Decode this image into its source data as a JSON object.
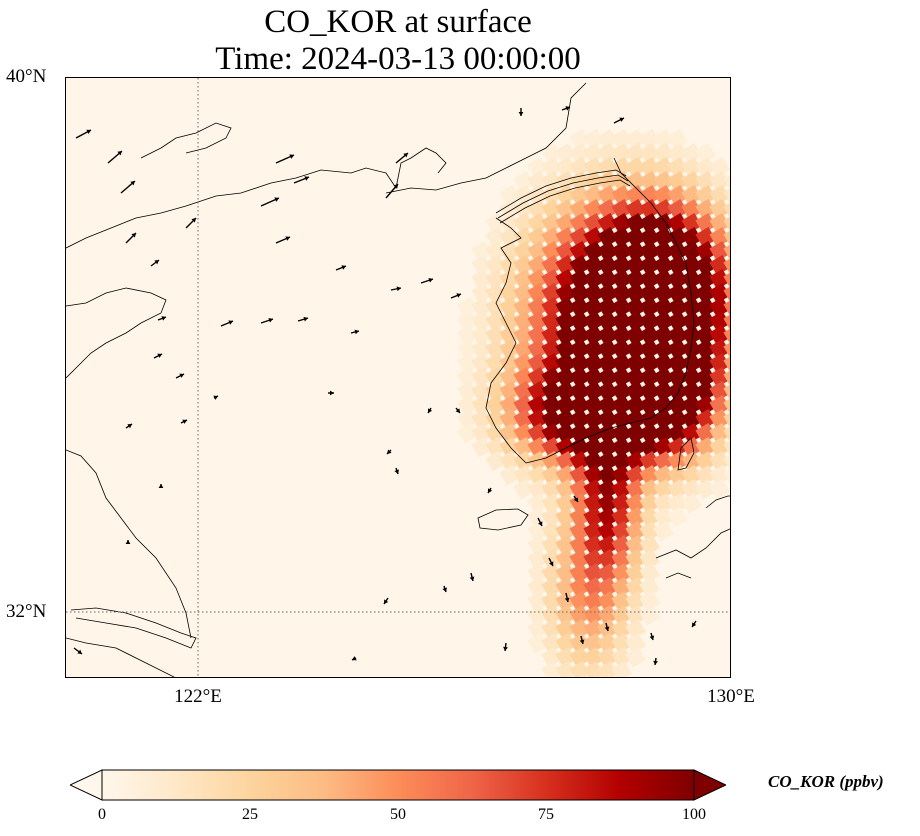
{
  "title": {
    "line1": "CO_KOR at surface",
    "line2": "Time: 2024-03-13 00:00:00"
  },
  "map": {
    "lat_labels": [
      "40°N",
      "32°N"
    ],
    "lon_labels": [
      "122°E",
      "130°E"
    ],
    "extent_lon": [
      120,
      130
    ],
    "extent_lat": [
      31,
      40
    ],
    "gridlines": "dotted",
    "features": [
      "coastlines",
      "wind-vectors",
      "concentration-field"
    ]
  },
  "colorbar": {
    "label": "CO_KOR (ppbv)",
    "ticks": [
      "0",
      "25",
      "50",
      "75",
      "100"
    ],
    "range": [
      0,
      100
    ],
    "extend": "both",
    "colormap": "OrRd",
    "colors": [
      "#fff7ec",
      "#fee8c8",
      "#fdd49e",
      "#fdbb84",
      "#fc8d59",
      "#ef6548",
      "#d7301f",
      "#b30000",
      "#7f0000"
    ]
  }
}
